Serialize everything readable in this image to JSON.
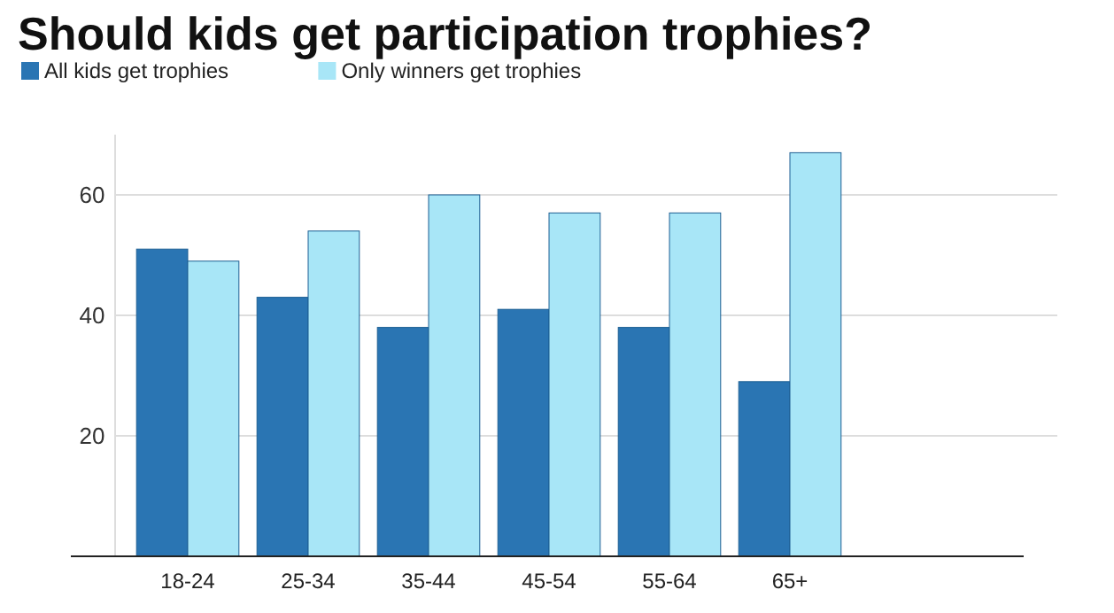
{
  "chart_data": {
    "type": "bar",
    "title": "Should kids get participation trophies?",
    "categories": [
      "18-24",
      "25-34",
      "35-44",
      "45-54",
      "55-64",
      "65+"
    ],
    "series": [
      {
        "name": "All kids get trophies",
        "color": "#2a75b3",
        "values": [
          51,
          43,
          38,
          41,
          38,
          29
        ]
      },
      {
        "name": "Only winners get trophies",
        "color": "#a8e6f7",
        "values": [
          49,
          54,
          60,
          57,
          57,
          67
        ]
      }
    ],
    "ylim": [
      0,
      70
    ],
    "yticks": [
      20,
      40,
      60
    ],
    "grid": "y",
    "legend": "top left"
  }
}
